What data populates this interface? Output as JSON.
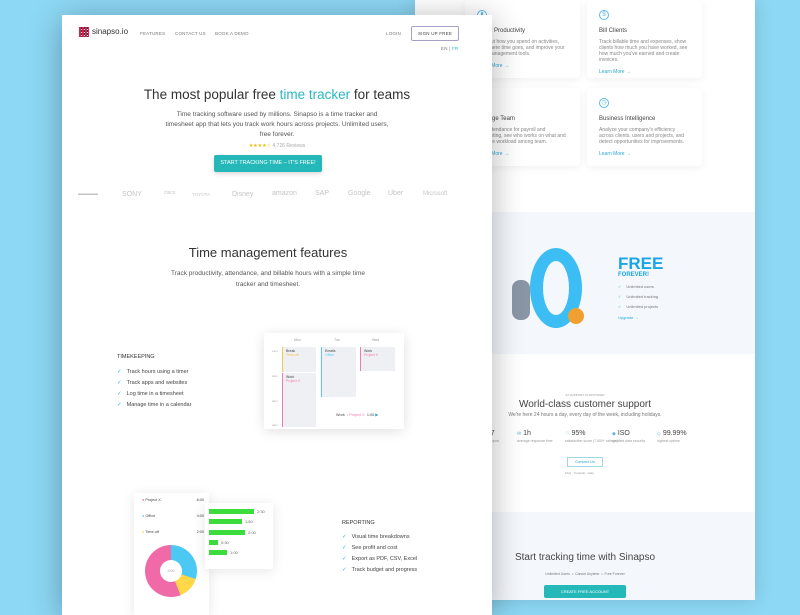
{
  "brand": {
    "name": "sinapso.io",
    "accent": "#2ab7c3",
    "background": "#8dd8f5"
  },
  "nav": {
    "features": "FEATURES",
    "contact": "CONTACT US",
    "demo": "BOOK A DEMO",
    "login": "LOGIN",
    "signup": "SIGN UP FREE",
    "lang_en": "EN",
    "lang_sep": "|",
    "lang_fr": "FR"
  },
  "hero": {
    "title_a": "The most popular free ",
    "title_b": "time tracker",
    "title_c": " for teams",
    "subtitle": "Time tracking software used by millions. Sinapso is a time tracker and timesheet app that lets you track work hours across projects. Unlimited users, free forever.",
    "rating_stars": 4.5,
    "rating_text": "4,726 Reviews",
    "cta": "START TRACKING TIME – IT'S FREE!"
  },
  "logos": [
    "SONY",
    "cisco",
    "TOYOTA",
    "Disney",
    "amazon",
    "SAP",
    "Google",
    "Uber",
    "Microsoft"
  ],
  "features": {
    "title": "Time management features",
    "subtitle": "Track productivity, attendance, and billable hours with a simple time tracker and timesheet."
  },
  "timekeeping": {
    "heading": "TIMEKEEPING",
    "items": [
      "Track hours using a timer",
      "Track apps and websites",
      "Log time in a timesheet",
      "Manage time in a calendar"
    ],
    "calendar": {
      "days": [
        "Mon",
        "Tue",
        "Wed"
      ],
      "times": [
        "1am",
        "2am",
        "3am",
        "4am"
      ],
      "entries": [
        {
          "title": "Break",
          "tag": "Time-off",
          "color": "#f5c842"
        },
        {
          "title": "Work",
          "tag": "Project X",
          "color": "#f27ab0"
        },
        {
          "title": "Emails",
          "tag": "Office",
          "color": "#5ac8f5"
        },
        {
          "title": "Work",
          "tag": "Project X",
          "color": "#f27ab0"
        }
      ],
      "timer": {
        "label": "Work",
        "project": "• Project X",
        "time": "1:00"
      }
    }
  },
  "reporting": {
    "heading": "REPORTING",
    "items": [
      "Visual time breakdowns",
      "See profit and cost",
      "Export as PDF, CSV, Excel",
      "Track budget and progress"
    ],
    "legend": [
      {
        "name": "Project X",
        "value": "8:00",
        "color": "#f06aa8"
      },
      {
        "name": "Office",
        "value": "4:00",
        "color": "#4cc8f5"
      },
      {
        "name": "Time-off",
        "value": "2:00",
        "color": "#ffd84a"
      }
    ],
    "donut_center": "0:00",
    "bars": [
      {
        "label": "2:30",
        "value": 2.5
      },
      {
        "label": "1:50",
        "value": 1.83
      },
      {
        "label": "2:00",
        "value": 2.0
      },
      {
        "label": "0:30",
        "value": 0.5
      },
      {
        "label": "1:00",
        "value": 1.0
      }
    ]
  },
  "back": {
    "cards": [
      {
        "title": "Boost Productivity",
        "icon": "chart-icon",
        "text": "Find out how you spend on activities, see where time goes, and improve your time management tools.",
        "link": "Learn More →"
      },
      {
        "title": "Bill Clients",
        "icon": "dollar-icon",
        "text": "Track billable time and expenses, show clients how much you have worked, see how much you've earned and create invoices.",
        "link": "Learn More →"
      },
      {
        "title": "Manage Team",
        "icon": "team-icon",
        "text": "Run attendance for payroll and accounting, see who works on what and manage workload among team.",
        "link": "Learn More →"
      },
      {
        "title": "Business Intelligence",
        "icon": "clock-icon",
        "text": "Analyze your company's efficiency across clients, users and projects, and detect opportunities for improvements.",
        "link": "Learn More →"
      }
    ],
    "free": {
      "big": "FREE",
      "sub": "FOREVER!",
      "items": [
        "Unlimited users",
        "Unlimited tracking",
        "Unlimited projects"
      ],
      "link": "Upgrade →"
    },
    "support": {
      "kicker": "24 SUPPORT IN SPOTIFIED",
      "title": "World-class customer support",
      "subtitle": "We're here 24 hours a day, every day of the week, including holidays.",
      "stats": [
        {
          "value": "24/7",
          "note": "live support"
        },
        {
          "value": "1h",
          "note": "average response time"
        },
        {
          "value": "95%",
          "note": "satisfaction score (7,500+ ratings)"
        },
        {
          "value": "ISO",
          "note": "certified data security"
        },
        {
          "value": "99.99%",
          "note": "highest uptime"
        }
      ],
      "button": "Contact Us",
      "links": "FAQ · Tutorials · Help"
    },
    "cta": {
      "title": "Start tracking time with Sinapso",
      "points": [
        "Unlimited Users",
        "Cancel Anytime",
        "Free Forever"
      ],
      "button": "CREATE FREE ACCOUNT"
    }
  }
}
